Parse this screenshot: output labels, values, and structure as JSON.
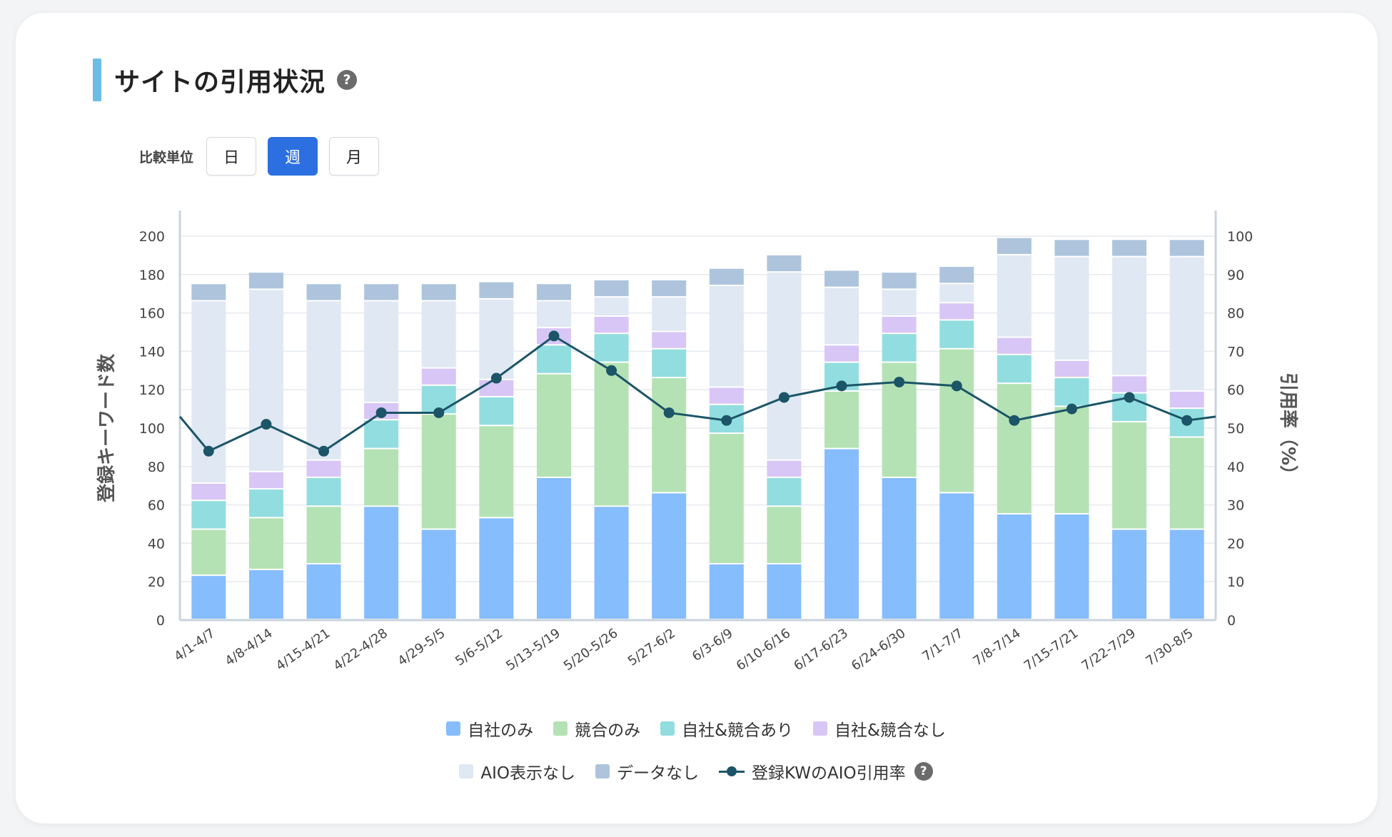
{
  "header": {
    "title": "サイトの引用状況",
    "help_glyph": "?"
  },
  "compare_unit": {
    "label": "比較単位",
    "options": [
      "日",
      "週",
      "月"
    ],
    "selected": "週"
  },
  "chart_data": {
    "type": "bar",
    "stacked": true,
    "categories": [
      "4/1-4/7",
      "4/8-4/14",
      "4/15-4/21",
      "4/22-4/28",
      "4/29-5/5",
      "5/6-5/12",
      "5/13-5/19",
      "5/20-5/26",
      "5/27-6/2",
      "6/3-6/9",
      "6/10-6/16",
      "6/17-6/23",
      "6/24-6/30",
      "7/1-7/7",
      "7/8-7/14",
      "7/15-7/21",
      "7/22-7/29",
      "7/30-8/5"
    ],
    "series": [
      {
        "name": "自社のみ",
        "color": "#86bdfd",
        "values": [
          23,
          26,
          29,
          59,
          47,
          53,
          74,
          59,
          66,
          29,
          29,
          89,
          74,
          66,
          55,
          55,
          47,
          47
        ]
      },
      {
        "name": "競合のみ",
        "color": "#b4e2b4",
        "values": [
          24,
          27,
          30,
          30,
          60,
          48,
          54,
          75,
          60,
          68,
          30,
          30,
          60,
          75,
          68,
          56,
          56,
          48
        ]
      },
      {
        "name": "自社&競合あり",
        "color": "#92dde0",
        "values": [
          15,
          15,
          15,
          15,
          15,
          15,
          15,
          15,
          15,
          15,
          15,
          15,
          15,
          15,
          15,
          15,
          15,
          15
        ]
      },
      {
        "name": "自社&競合なし",
        "color": "#d8c6f6",
        "values": [
          9,
          9,
          9,
          9,
          9,
          9,
          9,
          9,
          9,
          9,
          9,
          9,
          9,
          9,
          9,
          9,
          9,
          9
        ]
      },
      {
        "name": "AIO表示なし",
        "color": "#dfe8f3",
        "values": [
          95,
          95,
          83,
          53,
          35,
          42,
          14,
          10,
          18,
          53,
          98,
          30,
          14,
          10,
          43,
          54,
          62,
          70
        ]
      },
      {
        "name": "データなし",
        "color": "#adc4dc",
        "values": [
          9,
          9,
          9,
          9,
          9,
          9,
          9,
          9,
          9,
          9,
          9,
          9,
          9,
          9,
          9,
          9,
          9,
          9
        ]
      }
    ],
    "line_series": {
      "name": "登録KWのAIO引用率",
      "color": "#1c5567",
      "axis": "right",
      "values": [
        44,
        51,
        44,
        54,
        54,
        63,
        74,
        65,
        54,
        52,
        58,
        61,
        62,
        61,
        52,
        55,
        58,
        52
      ],
      "left_edge_value": 53,
      "right_edge_value": 53
    },
    "y_left": {
      "label": "登録キーワード数",
      "min": 0,
      "max": 200,
      "ticks": [
        0,
        20,
        40,
        60,
        80,
        100,
        120,
        140,
        160,
        180,
        200
      ]
    },
    "y_right": {
      "label": "引用率（%）",
      "min": 0,
      "max": 100,
      "ticks": [
        0,
        10,
        20,
        30,
        40,
        50,
        60,
        70,
        80,
        90,
        100
      ]
    },
    "grid": true,
    "legend_position": "bottom"
  },
  "legend": {
    "row1": [
      {
        "label": "自社のみ",
        "color": "#86bdfd"
      },
      {
        "label": "競合のみ",
        "color": "#b4e2b4"
      },
      {
        "label": "自社&競合あり",
        "color": "#92dde0"
      },
      {
        "label": "自社&競合なし",
        "color": "#d8c6f6"
      }
    ],
    "row2": [
      {
        "label": "AIO表示なし",
        "color": "#dfe8f3"
      },
      {
        "label": "データなし",
        "color": "#adc4dc"
      }
    ],
    "line_item": {
      "label": "登録KWのAIO引用率",
      "color": "#1c5567",
      "help_glyph": "?"
    }
  }
}
